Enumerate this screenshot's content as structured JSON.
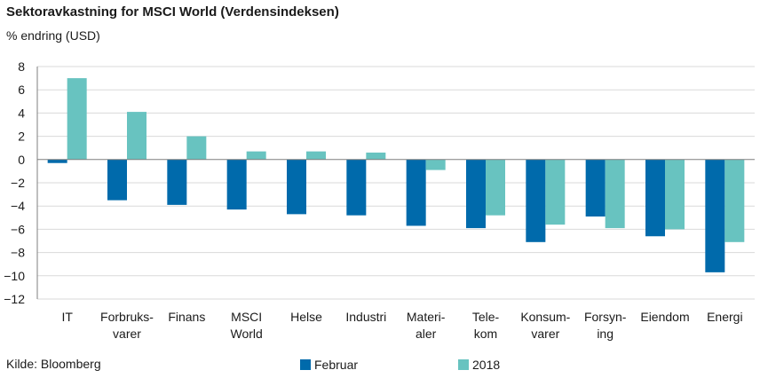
{
  "header": {
    "title": "Sektoravkastning for MSCI World (Verdensindeksen)",
    "subtitle": "% endring (USD)"
  },
  "footer": {
    "source": "Kilde: Bloomberg"
  },
  "colors": {
    "februar": "#006aab",
    "y2018": "#68c3c0",
    "axis": "#7f7f7f",
    "grid": "#d9d9d9"
  },
  "chart_data": {
    "type": "bar",
    "title": "Sektoravkastning for MSCI World (Verdensindeksen)",
    "ylabel": "% endring (USD)",
    "ylim": [
      -12,
      8
    ],
    "yticks": [
      8,
      6,
      4,
      2,
      0,
      -2,
      -4,
      -6,
      -8,
      -10,
      -12
    ],
    "grid": true,
    "legend": "bottom",
    "categories": [
      "IT",
      "Forbruks-\nvarer",
      "Finans",
      "MSCI\nWorld",
      "Helse",
      "Industri",
      "Materi-\naler",
      "Tele-\nkom",
      "Konsum-\nvarer",
      "Forsyn-\ning",
      "Eiendom",
      "Energi"
    ],
    "series": [
      {
        "name": "Februar",
        "values": [
          -0.3,
          -3.5,
          -3.9,
          -4.3,
          -4.7,
          -4.8,
          -5.7,
          -5.9,
          -7.1,
          -4.9,
          -6.6,
          -9.7
        ]
      },
      {
        "name": "2018",
        "values": [
          7.0,
          4.1,
          2.0,
          0.7,
          0.7,
          0.6,
          -0.9,
          -4.8,
          -5.6,
          -5.9,
          -6.0,
          -7.1
        ]
      }
    ]
  }
}
